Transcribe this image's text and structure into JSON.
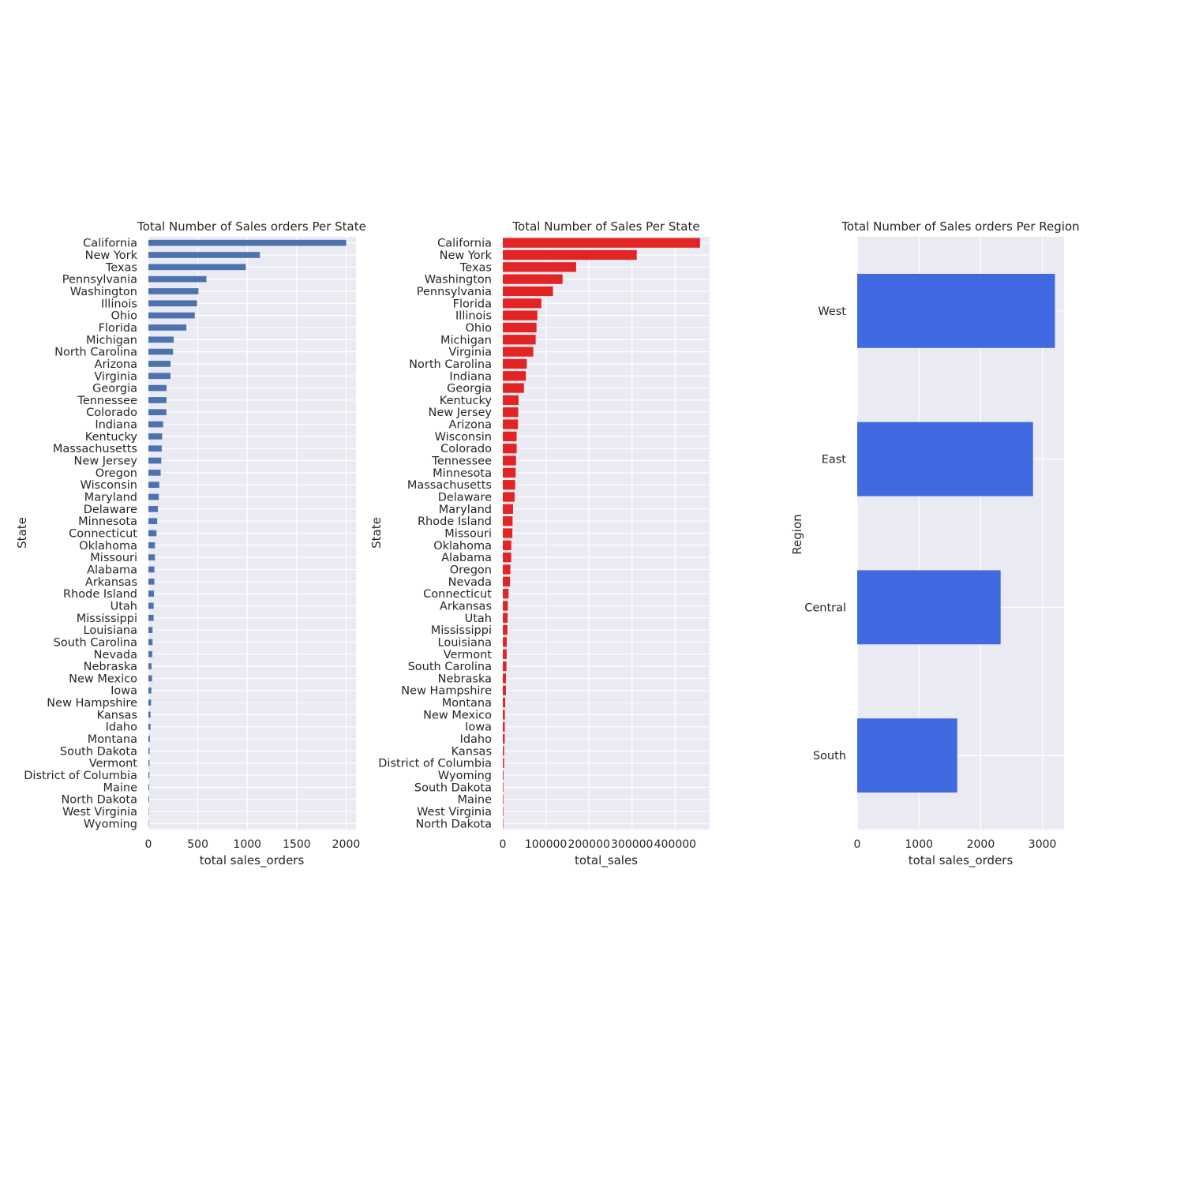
{
  "colors": {
    "background": "#ffffff",
    "panel": "#eaeaf2",
    "grid": "#ffffff",
    "text": "#262626"
  },
  "chart_data": [
    {
      "type": "bar",
      "orientation": "horizontal",
      "title": "Total Number of Sales orders Per State",
      "xlabel": "total sales_orders",
      "ylabel": "State",
      "xlim": [
        0,
        2100
      ],
      "xticks": [
        0,
        500,
        1000,
        1500,
        2000
      ],
      "grid": true,
      "bar_color": "#4c72b0",
      "categories": [
        "California",
        "New York",
        "Texas",
        "Pennsylvania",
        "Washington",
        "Illinois",
        "Ohio",
        "Florida",
        "Michigan",
        "North Carolina",
        "Arizona",
        "Virginia",
        "Georgia",
        "Tennessee",
        "Colorado",
        "Indiana",
        "Kentucky",
        "Massachusetts",
        "New Jersey",
        "Oregon",
        "Wisconsin",
        "Maryland",
        "Delaware",
        "Minnesota",
        "Connecticut",
        "Oklahoma",
        "Missouri",
        "Alabama",
        "Arkansas",
        "Rhode Island",
        "Utah",
        "Mississippi",
        "Louisiana",
        "South Carolina",
        "Nevada",
        "Nebraska",
        "New Mexico",
        "Iowa",
        "New Hampshire",
        "Kansas",
        "Idaho",
        "Montana",
        "South Dakota",
        "Vermont",
        "District of Columbia",
        "Maine",
        "North Dakota",
        "West Virginia",
        "Wyoming"
      ],
      "values": [
        2001,
        1128,
        985,
        587,
        506,
        492,
        469,
        384,
        255,
        249,
        224,
        224,
        184,
        183,
        182,
        149,
        139,
        135,
        130,
        124,
        110,
        105,
        96,
        89,
        82,
        66,
        66,
        61,
        60,
        56,
        53,
        53,
        42,
        42,
        39,
        32,
        37,
        30,
        27,
        21,
        21,
        15,
        12,
        11,
        10,
        8,
        7,
        4,
        1
      ]
    },
    {
      "type": "bar",
      "orientation": "horizontal",
      "title": "Total Number of Sales Per State",
      "xlabel": "total_sales",
      "ylabel": "State",
      "xlim": [
        0,
        480000
      ],
      "xticks": [
        0,
        100000,
        200000,
        300000,
        400000
      ],
      "grid": true,
      "bar_color": "#e32424",
      "categories": [
        "California",
        "New York",
        "Texas",
        "Washington",
        "Pennsylvania",
        "Florida",
        "Illinois",
        "Ohio",
        "Michigan",
        "Virginia",
        "North Carolina",
        "Indiana",
        "Georgia",
        "Kentucky",
        "New Jersey",
        "Arizona",
        "Wisconsin",
        "Colorado",
        "Tennessee",
        "Minnesota",
        "Massachusetts",
        "Delaware",
        "Maryland",
        "Rhode Island",
        "Missouri",
        "Oklahoma",
        "Alabama",
        "Oregon",
        "Nevada",
        "Connecticut",
        "Arkansas",
        "Utah",
        "Mississippi",
        "Louisiana",
        "Vermont",
        "South Carolina",
        "Nebraska",
        "New Hampshire",
        "Montana",
        "New Mexico",
        "Iowa",
        "Idaho",
        "Kansas",
        "District of Columbia",
        "Wyoming",
        "South Dakota",
        "Maine",
        "West Virginia",
        "North Dakota"
      ],
      "values": [
        457688,
        310876,
        170188,
        138641,
        116512,
        89474,
        80166,
        78258,
        76270,
        70637,
        55603,
        53555,
        49096,
        36592,
        35764,
        35282,
        32115,
        32108,
        30662,
        29863,
        28634,
        27451,
        23706,
        22628,
        22205,
        19683,
        19511,
        17431,
        16729,
        13384,
        11678,
        11220,
        10771,
        9217,
        8929,
        8482,
        7465,
        7293,
        5589,
        4784,
        4580,
        4382,
        2914,
        2865,
        1603,
        1316,
        1271,
        1210,
        920
      ]
    },
    {
      "type": "bar",
      "orientation": "horizontal",
      "title": "Total Number of Sales orders Per Region",
      "xlabel": "total sales_orders",
      "ylabel": "Region",
      "xlim": [
        0,
        3350
      ],
      "xticks": [
        0,
        1000,
        2000,
        3000
      ],
      "grid": true,
      "bar_color": "#4169e1",
      "categories": [
        "West",
        "East",
        "Central",
        "South"
      ],
      "values": [
        3203,
        2848,
        2323,
        1620
      ]
    }
  ]
}
